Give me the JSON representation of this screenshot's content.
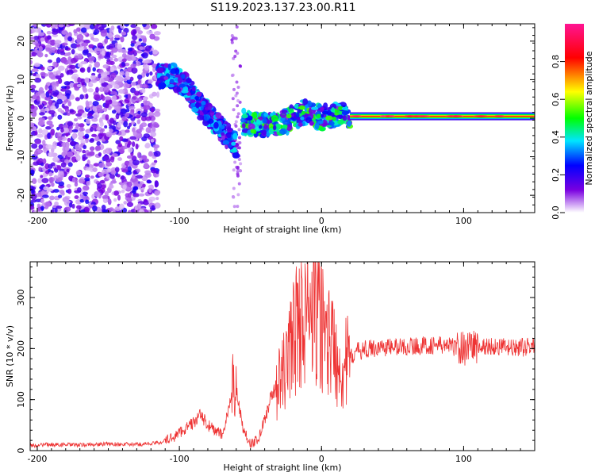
{
  "title": "S119.2023.137.23.00.R11",
  "chart_data": [
    {
      "type": "heatmap",
      "xlabel": "Height of straight line (km)",
      "ylabel": "Frequency (Hz)",
      "xlim": [
        -205,
        150
      ],
      "ylim": [
        -24.5,
        24.5
      ],
      "xticks": [
        -200,
        -100,
        0,
        100
      ],
      "yticks": [
        -20,
        -10,
        0,
        10,
        20
      ],
      "colorbar": {
        "label": "Normalized spectral amplitude",
        "range": [
          0,
          1
        ],
        "ticks": [
          "0.0",
          "0.2",
          "0.4",
          "0.6",
          "0.8"
        ],
        "stops": [
          "#ffffff",
          "#7a00e0",
          "#0000ff",
          "#00e5ff",
          "#00ff00",
          "#ffff00",
          "#ff0000",
          "#ff1493"
        ]
      },
      "features": [
        {
          "label": "broadband noise",
          "x_range": [
            -205,
            -115
          ],
          "freq_range": [
            -24.5,
            24.5
          ],
          "amplitude": 0.15
        },
        {
          "label": "descending streak",
          "x": [
            -115,
            -105,
            -95,
            -85,
            -75,
            -65,
            -60
          ],
          "freq": [
            11,
            11,
            8,
            3,
            -1,
            -5,
            -7
          ],
          "amplitude": 0.3
        },
        {
          "label": "rising streak",
          "x": [
            -55,
            -40,
            -25,
            -15,
            -10,
            0,
            10,
            20
          ],
          "freq": [
            -1,
            -2,
            -1,
            1,
            2,
            0,
            1,
            0.5
          ],
          "amplitude": 0.45
        },
        {
          "label": "steady line",
          "x": [
            20,
            150
          ],
          "freq": [
            0.5,
            0.5
          ],
          "amplitude": 0.9
        }
      ]
    },
    {
      "type": "line",
      "xlabel": "Height of straight line (km)",
      "ylabel": "SNR (10 * v/v)",
      "xlim": [
        -205,
        150
      ],
      "ylim": [
        0,
        370
      ],
      "xticks": [
        -200,
        -100,
        0,
        100
      ],
      "yticks": [
        0,
        100,
        200,
        300
      ],
      "color": "#ee3333",
      "x": [
        -205,
        -190,
        -170,
        -150,
        -130,
        -115,
        -105,
        -95,
        -90,
        -85,
        -80,
        -75,
        -70,
        -65,
        -62,
        -60,
        -55,
        -50,
        -45,
        -40,
        -35,
        -30,
        -25,
        -20,
        -15,
        -10,
        -5,
        0,
        5,
        10,
        15,
        20,
        25,
        30,
        40,
        60,
        80,
        90,
        100,
        105,
        110,
        120,
        135,
        150
      ],
      "y": [
        10,
        12,
        11,
        13,
        12,
        15,
        25,
        45,
        55,
        70,
        50,
        40,
        30,
        80,
        150,
        120,
        40,
        15,
        20,
        60,
        110,
        130,
        160,
        230,
        250,
        270,
        260,
        250,
        220,
        190,
        160,
        180,
        195,
        198,
        202,
        204,
        207,
        205,
        200,
        210,
        202,
        205,
        200,
        205
      ]
    }
  ]
}
